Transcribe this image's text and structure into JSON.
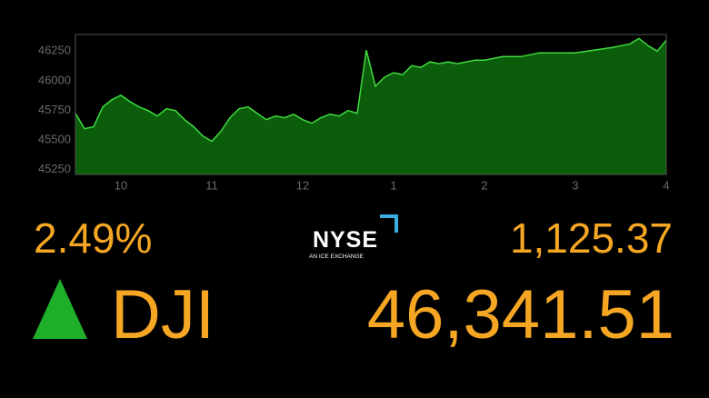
{
  "chart_data": {
    "type": "area",
    "x": [
      9.5,
      9.6,
      9.7,
      9.8,
      9.9,
      10.0,
      10.1,
      10.2,
      10.3,
      10.4,
      10.5,
      10.6,
      10.7,
      10.8,
      10.9,
      11.0,
      11.1,
      11.2,
      11.3,
      11.4,
      11.5,
      11.6,
      11.7,
      11.8,
      11.9,
      12.0,
      12.1,
      12.2,
      12.3,
      12.4,
      12.5,
      12.6,
      12.7,
      12.8,
      12.9,
      13.0,
      13.1,
      13.2,
      13.3,
      13.4,
      13.5,
      13.6,
      13.7,
      13.8,
      13.9,
      14.0,
      14.2,
      14.4,
      14.6,
      14.8,
      15.0,
      15.2,
      15.4,
      15.6,
      15.7,
      15.8,
      15.9,
      16.0
    ],
    "values": [
      45726,
      45596,
      45612,
      45779,
      45840,
      45878,
      45824,
      45779,
      45749,
      45703,
      45764,
      45749,
      45672,
      45612,
      45536,
      45490,
      45574,
      45688,
      45764,
      45779,
      45726,
      45672,
      45703,
      45688,
      45718,
      45672,
      45642,
      45688,
      45718,
      45703,
      45749,
      45726,
      46258,
      45954,
      46030,
      46068,
      46052,
      46128,
      46113,
      46159,
      46144,
      46159,
      46144,
      46159,
      46174,
      46174,
      46204,
      46204,
      46235,
      46235,
      46235,
      46258,
      46280,
      46311,
      46356,
      46296,
      46250,
      46341
    ],
    "color": "#3fdc3f",
    "fill_color": "#0b5c0b",
    "xlim": [
      9.5,
      16
    ],
    "xticks": [
      10,
      11,
      12,
      {
        "value": 13,
        "label": "1"
      },
      {
        "value": 14,
        "label": "2"
      },
      {
        "value": 15,
        "label": "3"
      },
      {
        "value": 16,
        "label": "4"
      }
    ],
    "ylim": [
      45210,
      46390
    ],
    "yticks": [
      45250,
      45500,
      45750,
      46000,
      46250
    ]
  },
  "ticker": {
    "change_pct": "2.49%",
    "exchange": "NYSE",
    "exchange_tagline": "AN ICE EXCHANGE",
    "change_points": "1,125.37",
    "symbol": "DJI",
    "price": "46,341.51"
  }
}
